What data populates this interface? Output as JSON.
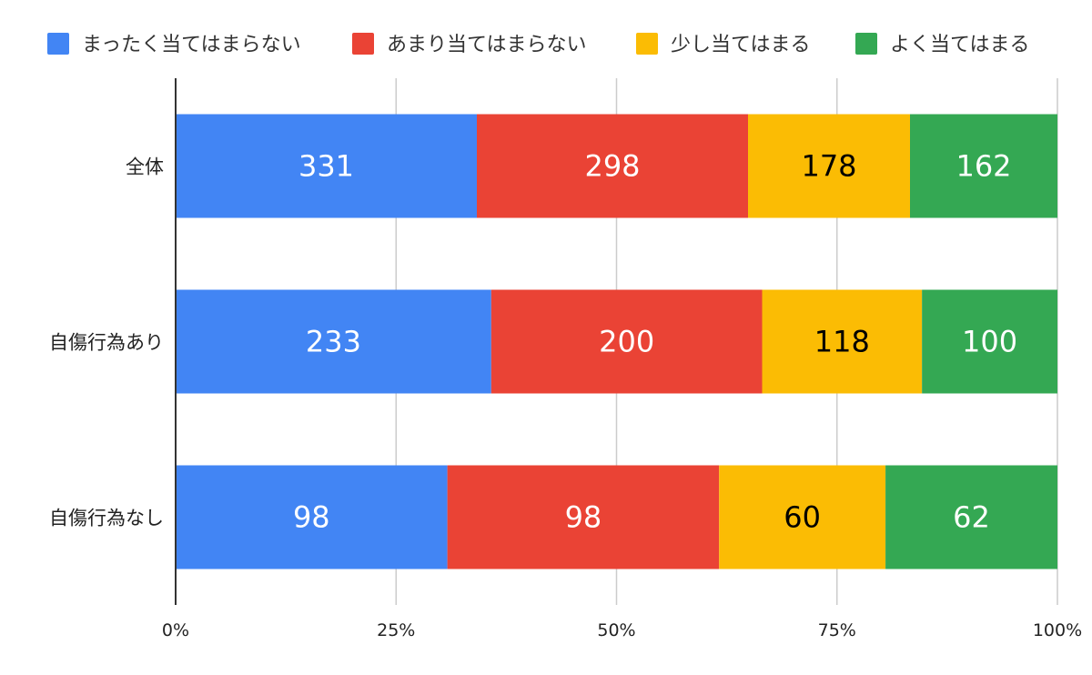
{
  "chart_data": {
    "type": "bar",
    "orientation": "horizontal",
    "stacked": "percent",
    "categories": [
      "全体",
      "自傷行為あり",
      "自傷行為なし"
    ],
    "series": [
      {
        "name": "まったく当てはまらない",
        "color": "#4285F4",
        "label_color": "#ffffff",
        "values": [
          331,
          233,
          98
        ]
      },
      {
        "name": "あまり当てはまらない",
        "color": "#EA4335",
        "label_color": "#ffffff",
        "values": [
          298,
          200,
          98
        ]
      },
      {
        "name": "少し当てはまる",
        "color": "#FBBC04",
        "label_color": "#000000",
        "values": [
          178,
          118,
          60
        ]
      },
      {
        "name": "よく当てはまる",
        "color": "#34A853",
        "label_color": "#ffffff",
        "values": [
          162,
          100,
          62
        ]
      }
    ],
    "xticks": [
      "0%",
      "25%",
      "50%",
      "75%",
      "100%"
    ],
    "xlim": [
      0,
      100
    ],
    "grid": true,
    "legend": "top"
  }
}
